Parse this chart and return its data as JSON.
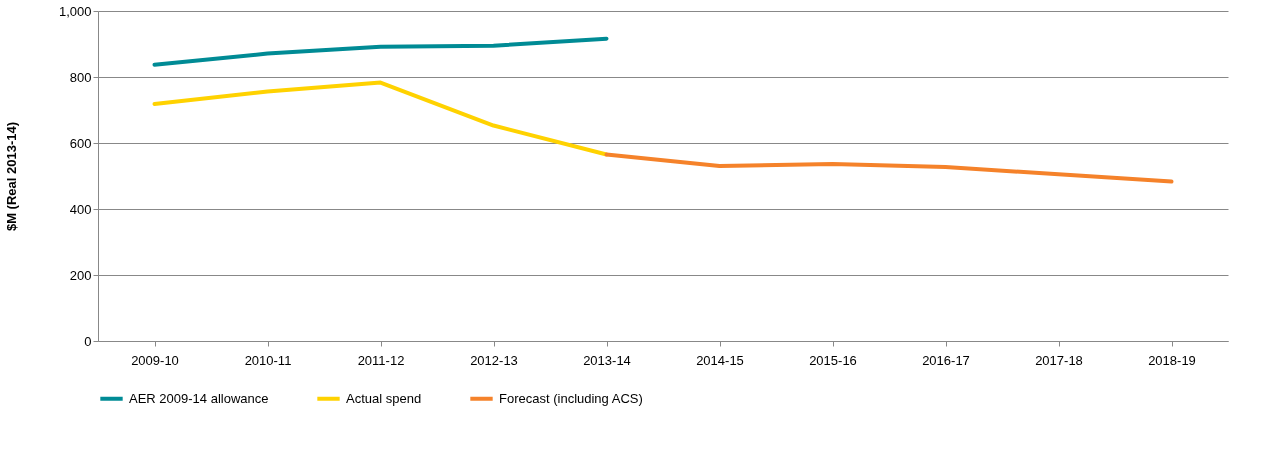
{
  "chart_data": {
    "type": "line",
    "ylabel": "$M (Real 2013-14)",
    "categories": [
      "2009-10",
      "2010-11",
      "2011-12",
      "2012-13",
      "2013-14",
      "2014-15",
      "2015-16",
      "2016-17",
      "2017-18",
      "2018-19"
    ],
    "series": [
      {
        "name": "AER 2009-14 allowance",
        "color": "#008b95",
        "values": [
          837,
          871,
          892,
          895,
          916,
          null,
          null,
          null,
          null,
          null
        ]
      },
      {
        "name": "Actual spend",
        "color": "#ffd200",
        "values": [
          718,
          756,
          783,
          653,
          565,
          null,
          null,
          null,
          null,
          null
        ]
      },
      {
        "name": "Forecast (including ACS)",
        "color": "#f5822a",
        "values": [
          null,
          null,
          null,
          null,
          565,
          530,
          536,
          527,
          505,
          483
        ]
      }
    ],
    "ylim": [
      0,
      1000
    ],
    "yticks": [
      0,
      200,
      400,
      600,
      800,
      {
        "value": 1000,
        "label": "1,000"
      }
    ],
    "grid": "y",
    "legend": "bottom",
    "marker": "none",
    "line_style": "solid"
  }
}
